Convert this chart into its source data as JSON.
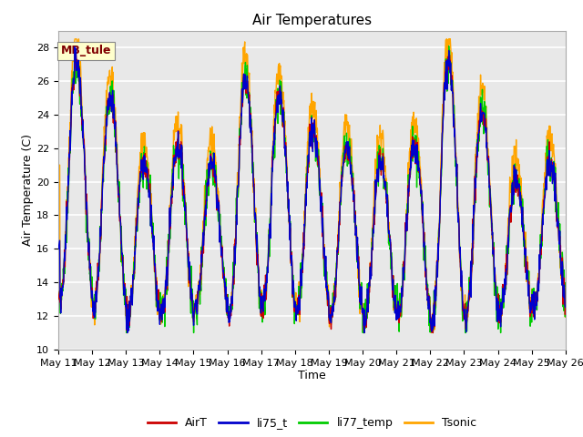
{
  "title": "Air Temperatures",
  "xlabel": "Time",
  "ylabel": "Air Temperature (C)",
  "ylim": [
    10,
    29
  ],
  "yticks": [
    10,
    12,
    14,
    16,
    18,
    20,
    22,
    24,
    26,
    28
  ],
  "x_tick_labels": [
    "May 11",
    "May 12",
    "May 13",
    "May 14",
    "May 15",
    "May 16",
    "May 17",
    "May 18",
    "May 19",
    "May 20",
    "May 21",
    "May 22",
    "May 23",
    "May 24",
    "May 25",
    "May 26"
  ],
  "colors": {
    "AirT": "#cc0000",
    "li75_t": "#0000cc",
    "li77_temp": "#00cc00",
    "Tsonic": "#ffa500"
  },
  "fig_bg_color": "#ffffff",
  "plot_bg_color": "#e8e8e8",
  "grid_color": "#ffffff",
  "annotation_text": "MB_tule",
  "annotation_bg": "#ffffcc",
  "annotation_fg": "#800000",
  "title_fontsize": 11,
  "axis_label_fontsize": 9,
  "tick_fontsize": 8,
  "legend_fontsize": 9
}
